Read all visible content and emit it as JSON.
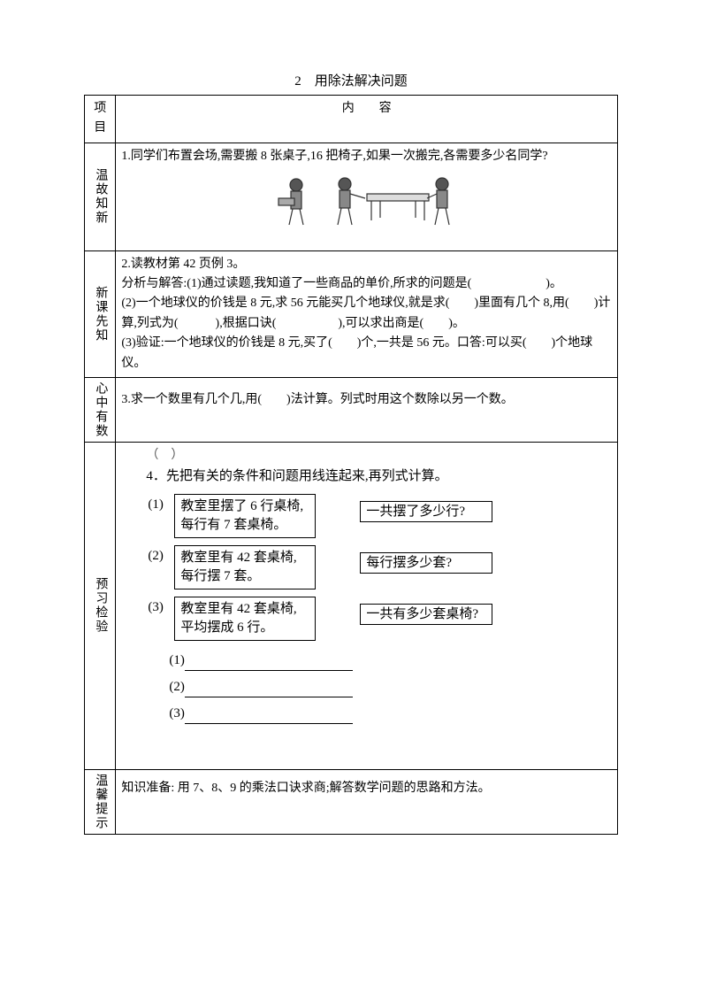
{
  "title": "2　用除法解决问题",
  "header": {
    "c1": "项目",
    "c2": "内　　容"
  },
  "row1": {
    "label": "温故知新",
    "text": "1.同学们布置会场,需要搬 8 张桌子,16 把椅子,如果一次搬完,各需要多少名同学?"
  },
  "row2": {
    "label": "新课先知",
    "line1": "2.读教材第 42 页例 3。",
    "line2": "分析与解答:(1)通过读题,我知道了一些商品的单价,所求的问题是(　　　　　　)。",
    "line3": "(2)一个地球仪的价钱是 8 元,求 56 元能买几个地球仪,就是求(　　)里面有几个 8,用(　　)计算,列式为(　　　),根据口诀(　　　　　),可以求出商是(　　)。",
    "line4": "(3)验证:一个地球仪的价钱是 8 元,买了(　　)个,一共是 56 元。口答:可以买(　　)个地球仪。"
  },
  "row3": {
    "label": "心中有数",
    "text": "3.求一个数里有几个几,用(　　)法计算。列式时用这个数除以另一个数。"
  },
  "row4": {
    "label": "预习检验",
    "smallnum": "（　）",
    "intro": "4．先把有关的条件和问题用线连起来,再列式计算。",
    "items": [
      {
        "num": "(1)",
        "left": "教室里摆了 6 行桌椅,每行有 7 套桌椅。",
        "right": "一共摆了多少行?"
      },
      {
        "num": "(2)",
        "left": "教室里有 42 套桌椅,每行摆 7 套。",
        "right": "每行摆多少套?"
      },
      {
        "num": "(3)",
        "left": "教室里有 42 套桌椅,平均摆成 6 行。",
        "right": "一共有多少套桌椅?"
      }
    ],
    "answers": [
      "(1)",
      "(2)",
      "(3)"
    ]
  },
  "row5": {
    "label": "温馨提示",
    "text": "知识准备: 用 7、8、9 的乘法口诀求商;解答数学问题的思路和方法。"
  }
}
